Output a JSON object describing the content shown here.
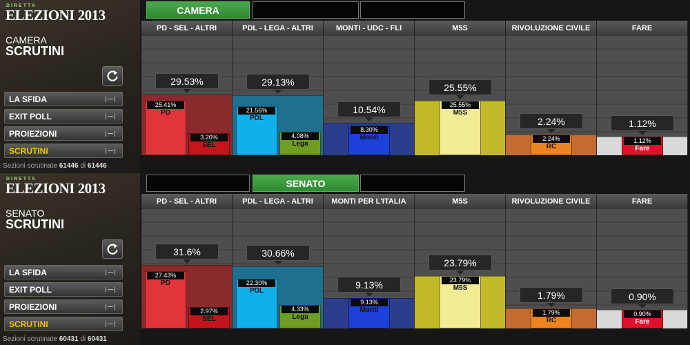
{
  "panels": [
    {
      "brand_kicker": "DIRETTA",
      "brand": "ELEZIONI 2013",
      "chamber": "CAMERA",
      "section": "SCRUTINI",
      "tab": "CAMERA",
      "tab_index": 0,
      "menu": [
        "LA SFIDA",
        "EXIT POLL",
        "PROIEZIONI",
        "SCRUTINI"
      ],
      "active_menu": 3,
      "footer": {
        "label": "Sezioni scrutinate",
        "counted": "61446",
        "joiner": "di",
        "total": "61446"
      },
      "coalitions": [
        {
          "name": "PD - SEL - ALTRI",
          "value": 29.53,
          "value_label": "29.53%",
          "color": "#8a2a2c",
          "parties": [
            {
              "name": "PD",
              "value": 25.41,
              "value_label": "25.41%",
              "color": "#e0353a",
              "text_color": "#111"
            },
            {
              "name": "SEL",
              "value": 3.2,
              "value_label": "3.20%",
              "color": "#c4141c",
              "text_color": "#111"
            }
          ]
        },
        {
          "name": "PDL - LEGA - ALTRI",
          "value": 29.13,
          "value_label": "29.13%",
          "color": "#1f6f8f",
          "parties": [
            {
              "name": "PDL",
              "value": 21.56,
              "value_label": "21.56%",
              "color": "#10b0ec",
              "text_color": "#111"
            },
            {
              "name": "Lega",
              "value": 4.08,
              "value_label": "4.08%",
              "color": "#6d9e22",
              "text_color": "#111"
            }
          ]
        },
        {
          "name": "MONTI - UDC - FLI",
          "value": 10.54,
          "value_label": "10.54%",
          "color": "#2c3d8c",
          "parties": [
            {
              "name": "Monti",
              "value": 8.3,
              "value_label": "8.30%",
              "color": "#1c40d8",
              "text_color": "#111"
            }
          ]
        },
        {
          "name": "M5S",
          "value": 25.55,
          "value_label": "25.55%",
          "color": "#c2b928",
          "parties": [
            {
              "name": "M5S",
              "value": 25.55,
              "value_label": "25.55%",
              "color": "#f3ec96",
              "text_color": "#111"
            }
          ]
        },
        {
          "name": "RIVOLUZIONE CIVILE",
          "value": 2.24,
          "value_label": "2.24%",
          "color": "#c56b32",
          "parties": [
            {
              "name": "RC",
              "value": 2.24,
              "value_label": "2.24%",
              "color": "#ec8420",
              "text_color": "#111"
            }
          ]
        },
        {
          "name": "FARE",
          "value": 1.12,
          "value_label": "1.12%",
          "color": "#d9d9d9",
          "parties": [
            {
              "name": "Fare",
              "value": 1.12,
              "value_label": "1.12%",
              "color": "#e0102a",
              "text_color": "#fff"
            }
          ]
        }
      ]
    },
    {
      "brand_kicker": "DIRETTA",
      "brand": "ELEZIONI 2013",
      "chamber": "SENATO",
      "section": "SCRUTINI",
      "tab": "SENATO",
      "tab_index": 1,
      "menu": [
        "LA SFIDA",
        "EXIT POLL",
        "PROIEZIONI",
        "SCRUTINI"
      ],
      "active_menu": 3,
      "footer": {
        "label": "Sezioni scrutinate",
        "counted": "60431",
        "joiner": "di",
        "total": "60431"
      },
      "coalitions": [
        {
          "name": "PD - SEL - ALTRI",
          "value": 31.6,
          "value_label": "31.6%",
          "color": "#8a2a2c",
          "parties": [
            {
              "name": "PD",
              "value": 27.43,
              "value_label": "27.43%",
              "color": "#e0353a",
              "text_color": "#111"
            },
            {
              "name": "SEL",
              "value": 2.97,
              "value_label": "2.97%",
              "color": "#c4141c",
              "text_color": "#111"
            }
          ]
        },
        {
          "name": "PDL - LEGA - ALTRI",
          "value": 30.66,
          "value_label": "30.66%",
          "color": "#1f6f8f",
          "parties": [
            {
              "name": "PDL",
              "value": 22.3,
              "value_label": "22.30%",
              "color": "#10b0ec",
              "text_color": "#111"
            },
            {
              "name": "Lega",
              "value": 4.33,
              "value_label": "4.33%",
              "color": "#6d9e22",
              "text_color": "#111"
            }
          ]
        },
        {
          "name": "MONTI PER L'ITALIA",
          "value": 9.13,
          "value_label": "9.13%",
          "color": "#2c3d8c",
          "parties": [
            {
              "name": "Monti",
              "value": 9.13,
              "value_label": "9.13%",
              "color": "#1c40d8",
              "text_color": "#111"
            }
          ]
        },
        {
          "name": "M5S",
          "value": 23.79,
          "value_label": "23.79%",
          "color": "#c2b928",
          "parties": [
            {
              "name": "M5S",
              "value": 23.79,
              "value_label": "23.79%",
              "color": "#f3ec96",
              "text_color": "#111"
            }
          ]
        },
        {
          "name": "RIVOLUZIONE CIVILE",
          "value": 1.79,
          "value_label": "1.79%",
          "color": "#c56b32",
          "parties": [
            {
              "name": "RC",
              "value": 1.79,
              "value_label": "1.79%",
              "color": "#ec8420",
              "text_color": "#111"
            }
          ]
        },
        {
          "name": "FARE",
          "value": 0.9,
          "value_label": "0.90%",
          "color": "#d9d9d9",
          "parties": [
            {
              "name": "Fare",
              "value": 0.9,
              "value_label": "0.90%",
              "color": "#e0102a",
              "text_color": "#fff"
            }
          ]
        }
      ]
    }
  ]
}
